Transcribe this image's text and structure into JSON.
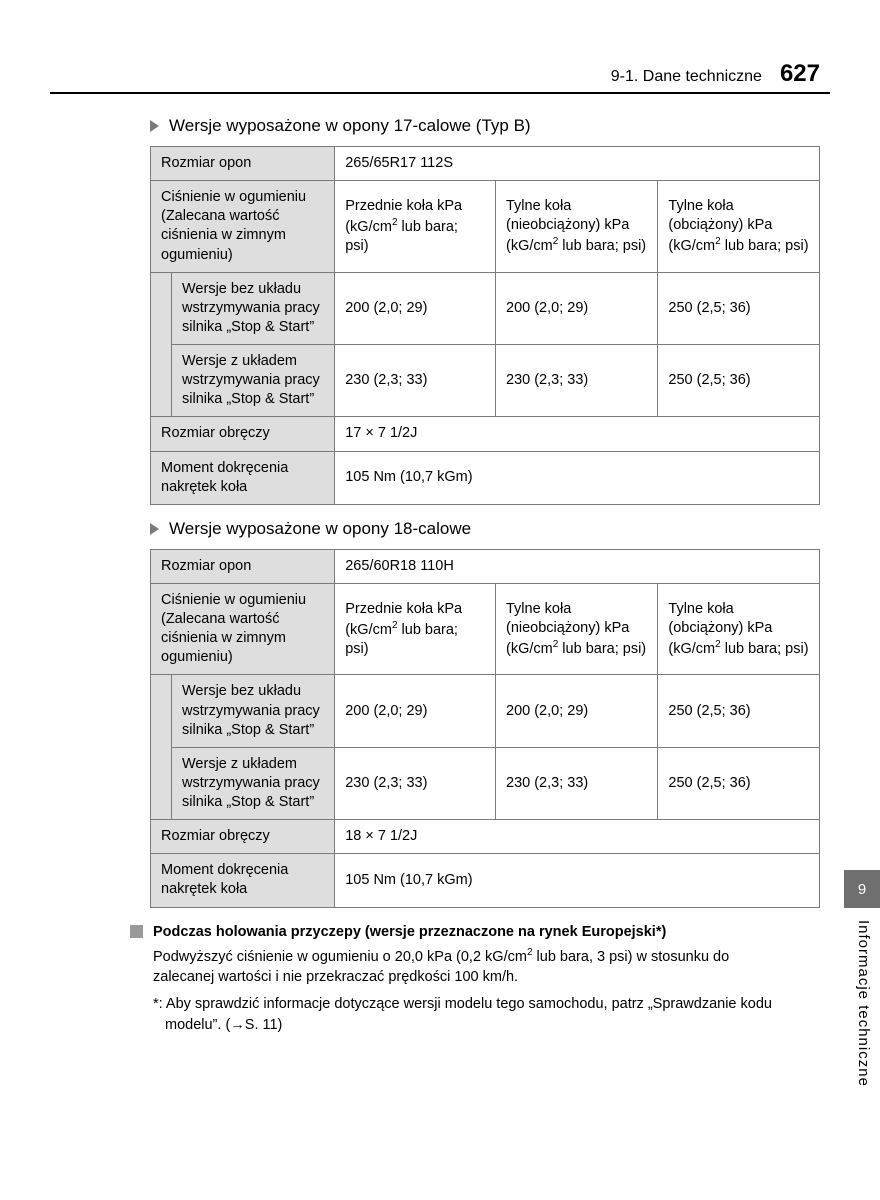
{
  "header": {
    "section": "9-1. Dane techniczne",
    "page": "627"
  },
  "section1": {
    "title": "Wersje wyposażone w opony 17-calowe (Typ B)",
    "tire_size_label": "Rozmiar opon",
    "tire_size": "265/65R17 112S",
    "pressure_label": "Ciśnienie w ogumieniu (Zalecana wartość ciśnienia w zimnym ogumieniu)",
    "col_front": "Przednie koła kPa (kG/cm",
    "col_rear1": "Tylne koła (nieobciążony) kPa (kG/cm",
    "col_rear2": "Tylne koła (obciążony) kPa (kG/cm",
    "col_tail": " lub bara; psi)",
    "row1_label": "Wersje bez układu wstrzymywania pracy silnika „Stop & Start”",
    "row1": [
      "200 (2,0; 29)",
      "200 (2,0; 29)",
      "250 (2,5; 36)"
    ],
    "row2_label": "Wersje z układem wstrzymywania pracy silnika „Stop & Start”",
    "row2": [
      "230 (2,3; 33)",
      "230 (2,3; 33)",
      "250 (2,5; 36)"
    ],
    "wheel_label": "Rozmiar obręczy",
    "wheel": "17 × 7 1/2J",
    "torque_label": "Moment dokręcenia nakrętek koła",
    "torque": "105 Nm (10,7 kGm)"
  },
  "section2": {
    "title": "Wersje wyposażone w opony 18-calowe",
    "tire_size_label": "Rozmiar opon",
    "tire_size": "265/60R18 110H",
    "pressure_label": "Ciśnienie w ogumieniu (Zalecana wartość ciśnienia w zimnym ogumieniu)",
    "col_front": "Przednie koła kPa (kG/cm",
    "col_rear1": "Tylne koła (nieobciążony) kPa (kG/cm",
    "col_rear2": "Tylne koła (obciążony) kPa (kG/cm",
    "col_tail": " lub bara; psi)",
    "row1_label": "Wersje bez układu wstrzymywania pracy silnika „Stop & Start”",
    "row1": [
      "200 (2,0; 29)",
      "200 (2,0; 29)",
      "250 (2,5; 36)"
    ],
    "row2_label": "Wersje z układem wstrzymywania pracy silnika „Stop & Start”",
    "row2": [
      "230 (2,3; 33)",
      "230 (2,3; 33)",
      "250 (2,5; 36)"
    ],
    "wheel_label": "Rozmiar obręczy",
    "wheel": "18 × 7 1/2J",
    "torque_label": "Moment dokręcenia nakrętek koła",
    "torque": "105 Nm (10,7 kGm)"
  },
  "notes": {
    "heading": "Podczas holowania przyczepy (wersje przeznaczone na rynek Europejski*)",
    "body1": "Podwyższyć ciśnienie w ogumieniu o 20,0 kPa (0,2 kG/cm",
    "body1_tail": " lub bara, 3 psi) w stosunku do zalecanej wartości i nie przekraczać prędkości 100 km/h.",
    "star": "*: Aby sprawdzić informacje dotyczące wersji modelu tego samochodu, patrz „Sprawdzanie kodu modelu”. (→S. 11)"
  },
  "side": {
    "chapter": "9",
    "label": "Informacje techniczne"
  }
}
